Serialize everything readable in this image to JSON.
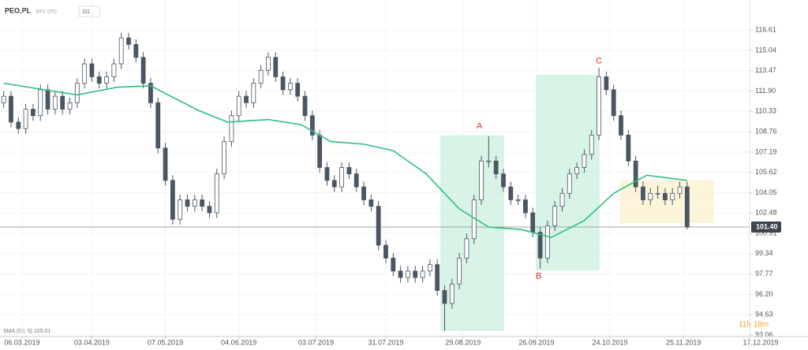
{
  "chart_data": {
    "type": "candlestick",
    "symbol": "PEO.PL",
    "instrument_type": "BTC CFD",
    "timeframe": "D1",
    "indicator_label": "SMA (50, 0) 105.01",
    "countdown": "11h 18m",
    "last_price": {
      "value": 101.4,
      "label": "101.40"
    },
    "up_color": "#ffffff",
    "down_color": "#4b5563",
    "sma_color": "#2ebd85",
    "grid": true,
    "xlim": [
      -6,
      198
    ],
    "ylim": [
      92.94,
      118.93
    ],
    "yticks": [
      {
        "value": 116.61,
        "label": "116.61"
      },
      {
        "value": 115.04,
        "label": "115.04"
      },
      {
        "value": 113.47,
        "label": "113.47"
      },
      {
        "value": 111.9,
        "label": "111.90"
      },
      {
        "value": 110.33,
        "label": "110.33"
      },
      {
        "value": 108.76,
        "label": "108.76"
      },
      {
        "value": 107.19,
        "label": "107.19"
      },
      {
        "value": 105.62,
        "label": "105.62"
      },
      {
        "value": 104.05,
        "label": "104.05"
      },
      {
        "value": 102.48,
        "label": "102.48"
      },
      {
        "value": 100.91,
        "label": "100.91"
      },
      {
        "value": 99.34,
        "label": "99.34"
      },
      {
        "value": 97.77,
        "label": "97.77"
      },
      {
        "value": 96.2,
        "label": "96.20"
      },
      {
        "value": 94.63,
        "label": "94.63"
      },
      {
        "value": 93.06,
        "label": "93.06"
      }
    ],
    "xticks": [
      {
        "value": 0,
        "label": "06.03.2019"
      },
      {
        "value": 19,
        "label": "03.04.2019"
      },
      {
        "value": 39,
        "label": "07.05.2019"
      },
      {
        "value": 59,
        "label": "04.06.2019"
      },
      {
        "value": 80,
        "label": "03.07.2019"
      },
      {
        "value": 99,
        "label": "31.07.2019"
      },
      {
        "value": 120,
        "label": "29.08.2019"
      },
      {
        "value": 140,
        "label": "26.09.2019"
      },
      {
        "value": 160,
        "label": "24.10.2019"
      },
      {
        "value": 180,
        "label": "25.11.2019"
      },
      {
        "value": 201,
        "label": "17.12.2019"
      }
    ],
    "x": [
      -5,
      -3,
      -1,
      1,
      3,
      5,
      7,
      9,
      11,
      13,
      15,
      17,
      19,
      21,
      23,
      25,
      27,
      29,
      31,
      33,
      35,
      37,
      39,
      41,
      43,
      45,
      47,
      49,
      51,
      53,
      55,
      57,
      59,
      61,
      63,
      65,
      67,
      69,
      71,
      73,
      75,
      77,
      79,
      81,
      83,
      85,
      87,
      89,
      91,
      93,
      95,
      97,
      99,
      101,
      103,
      105,
      107,
      109,
      111,
      113,
      115,
      117,
      119,
      121,
      123,
      125,
      127,
      129,
      131,
      133,
      135,
      137,
      139,
      141,
      143,
      145,
      147,
      149,
      151,
      153,
      155,
      157,
      159,
      161,
      163,
      165,
      167,
      169,
      171,
      173,
      175,
      177,
      179,
      181
    ],
    "ohlc": [
      [
        111.0,
        111.9,
        110.6,
        111.5
      ],
      [
        111.5,
        111.9,
        109.1,
        109.5
      ],
      [
        109.5,
        109.9,
        108.6,
        109.0
      ],
      [
        109.0,
        110.9,
        108.6,
        110.5
      ],
      [
        110.5,
        110.9,
        109.6,
        110.0
      ],
      [
        110.0,
        112.4,
        109.6,
        112.0
      ],
      [
        112.0,
        112.4,
        110.1,
        110.5
      ],
      [
        110.5,
        111.9,
        110.1,
        111.5
      ],
      [
        111.5,
        111.9,
        110.1,
        110.5
      ],
      [
        110.5,
        111.4,
        110.1,
        111.0
      ],
      [
        111.0,
        112.9,
        110.6,
        112.5
      ],
      [
        112.5,
        114.4,
        112.1,
        114.0
      ],
      [
        114.0,
        114.4,
        112.6,
        113.0
      ],
      [
        113.0,
        113.4,
        112.1,
        112.5
      ],
      [
        112.5,
        113.4,
        112.1,
        113.0
      ],
      [
        113.0,
        114.4,
        112.6,
        114.0
      ],
      [
        114.0,
        116.4,
        113.6,
        116.0
      ],
      [
        116.0,
        116.4,
        115.1,
        115.5
      ],
      [
        115.5,
        115.9,
        114.1,
        114.5
      ],
      [
        114.5,
        114.9,
        112.1,
        112.5
      ],
      [
        112.5,
        112.9,
        110.6,
        111.0
      ],
      [
        111.0,
        111.4,
        107.1,
        107.5
      ],
      [
        107.5,
        107.9,
        104.6,
        105.0
      ],
      [
        105.0,
        105.4,
        101.6,
        102.0
      ],
      [
        102.0,
        103.9,
        101.6,
        103.5
      ],
      [
        103.5,
        103.9,
        102.6,
        103.0
      ],
      [
        103.0,
        103.9,
        102.6,
        103.5
      ],
      [
        103.5,
        103.9,
        102.6,
        103.0
      ],
      [
        103.0,
        103.4,
        102.1,
        102.5
      ],
      [
        102.5,
        105.9,
        102.1,
        105.5
      ],
      [
        105.5,
        108.4,
        105.1,
        108.0
      ],
      [
        108.0,
        110.4,
        107.6,
        110.0
      ],
      [
        110.0,
        111.9,
        109.6,
        111.5
      ],
      [
        111.5,
        111.9,
        110.6,
        111.0
      ],
      [
        111.0,
        112.9,
        110.6,
        112.5
      ],
      [
        112.5,
        113.9,
        112.1,
        113.5
      ],
      [
        113.5,
        114.9,
        113.1,
        114.5
      ],
      [
        114.5,
        114.9,
        112.6,
        113.0
      ],
      [
        113.0,
        113.4,
        111.6,
        112.0
      ],
      [
        112.0,
        112.9,
        111.6,
        112.5
      ],
      [
        112.5,
        112.9,
        111.1,
        111.5
      ],
      [
        111.5,
        111.9,
        109.6,
        110.0
      ],
      [
        110.0,
        110.4,
        108.1,
        108.5
      ],
      [
        108.5,
        108.9,
        105.6,
        106.0
      ],
      [
        106.0,
        106.4,
        104.6,
        105.0
      ],
      [
        105.0,
        105.4,
        104.1,
        104.5
      ],
      [
        104.5,
        106.4,
        104.1,
        106.0
      ],
      [
        106.0,
        106.4,
        105.1,
        105.5
      ],
      [
        105.5,
        105.9,
        104.1,
        104.5
      ],
      [
        104.5,
        104.9,
        103.1,
        103.5
      ],
      [
        103.5,
        103.9,
        102.6,
        103.0
      ],
      [
        103.0,
        103.4,
        99.6,
        100.0
      ],
      [
        100.0,
        100.4,
        98.6,
        99.0
      ],
      [
        99.0,
        99.4,
        97.6,
        98.0
      ],
      [
        98.0,
        98.4,
        97.1,
        97.5
      ],
      [
        97.5,
        98.4,
        97.1,
        98.0
      ],
      [
        98.0,
        98.4,
        97.1,
        97.5
      ],
      [
        97.5,
        98.4,
        97.1,
        98.0
      ],
      [
        98.0,
        98.9,
        97.6,
        98.5
      ],
      [
        98.5,
        98.9,
        96.1,
        96.5
      ],
      [
        96.5,
        96.9,
        93.4,
        95.5
      ],
      [
        95.5,
        97.4,
        95.1,
        97.0
      ],
      [
        97.0,
        99.4,
        96.6,
        99.0
      ],
      [
        99.0,
        100.9,
        98.6,
        100.5
      ],
      [
        100.5,
        103.9,
        100.1,
        103.5
      ],
      [
        103.5,
        106.9,
        103.1,
        106.5
      ],
      [
        106.5,
        108.4,
        106.0,
        106.5
      ],
      [
        106.5,
        106.9,
        105.1,
        105.5
      ],
      [
        105.5,
        105.9,
        104.1,
        104.5
      ],
      [
        104.5,
        104.9,
        103.1,
        103.5
      ],
      [
        103.5,
        103.9,
        103.1,
        103.5
      ],
      [
        103.5,
        103.9,
        102.1,
        102.5
      ],
      [
        102.5,
        102.9,
        100.6,
        101.0
      ],
      [
        101.0,
        101.4,
        98.2,
        99.0
      ],
      [
        99.0,
        101.9,
        98.6,
        101.5
      ],
      [
        101.5,
        103.4,
        101.1,
        103.0
      ],
      [
        103.0,
        104.4,
        102.6,
        104.0
      ],
      [
        104.0,
        105.9,
        103.6,
        105.5
      ],
      [
        105.5,
        106.4,
        105.1,
        106.0
      ],
      [
        106.0,
        107.4,
        105.6,
        107.0
      ],
      [
        107.0,
        108.9,
        106.6,
        108.5
      ],
      [
        108.5,
        113.7,
        108.1,
        113.0
      ],
      [
        113.0,
        113.4,
        111.6,
        112.0
      ],
      [
        112.0,
        112.4,
        109.6,
        110.0
      ],
      [
        110.0,
        110.4,
        108.1,
        108.5
      ],
      [
        108.5,
        108.9,
        106.1,
        106.5
      ],
      [
        106.5,
        106.9,
        104.1,
        104.5
      ],
      [
        104.5,
        104.9,
        103.1,
        103.5
      ],
      [
        103.5,
        104.4,
        103.1,
        104.0
      ],
      [
        104.0,
        104.6,
        103.6,
        104.0
      ],
      [
        104.0,
        104.4,
        103.1,
        103.5
      ],
      [
        103.5,
        104.4,
        103.1,
        104.0
      ],
      [
        104.0,
        104.9,
        103.6,
        104.5
      ],
      [
        104.5,
        104.9,
        101.2,
        101.4
      ]
    ],
    "sma": {
      "x": [
        -5,
        15,
        26,
        35,
        48,
        56,
        67,
        76,
        84,
        93,
        101,
        110,
        119,
        127,
        136,
        144,
        153,
        161,
        170,
        181
      ],
      "values": [
        112.5,
        111.6,
        112.2,
        112.3,
        110.4,
        109.5,
        109.7,
        109.3,
        108.0,
        107.8,
        107.3,
        105.5,
        102.8,
        101.4,
        101.2,
        100.6,
        101.9,
        104.0,
        105.4,
        105.0
      ]
    },
    "zones": [
      {
        "x": [
          114,
          131
        ],
        "y": [
          93.44,
          108.44
        ],
        "color": "#c8efdc"
      },
      {
        "x": [
          140,
          157
        ],
        "y": [
          98.1,
          113.1
        ],
        "color": "#c8efdc"
      },
      {
        "x": [
          163,
          188
        ],
        "y": [
          101.74,
          104.97
        ],
        "color": "#fbf1c9"
      }
    ],
    "annotations": [
      {
        "text": "A",
        "x": 124.5,
        "y": 109.2
      },
      {
        "text": "B",
        "x": 140.6,
        "y": 97.6
      },
      {
        "text": "C",
        "x": 157,
        "y": 114.2
      }
    ]
  }
}
